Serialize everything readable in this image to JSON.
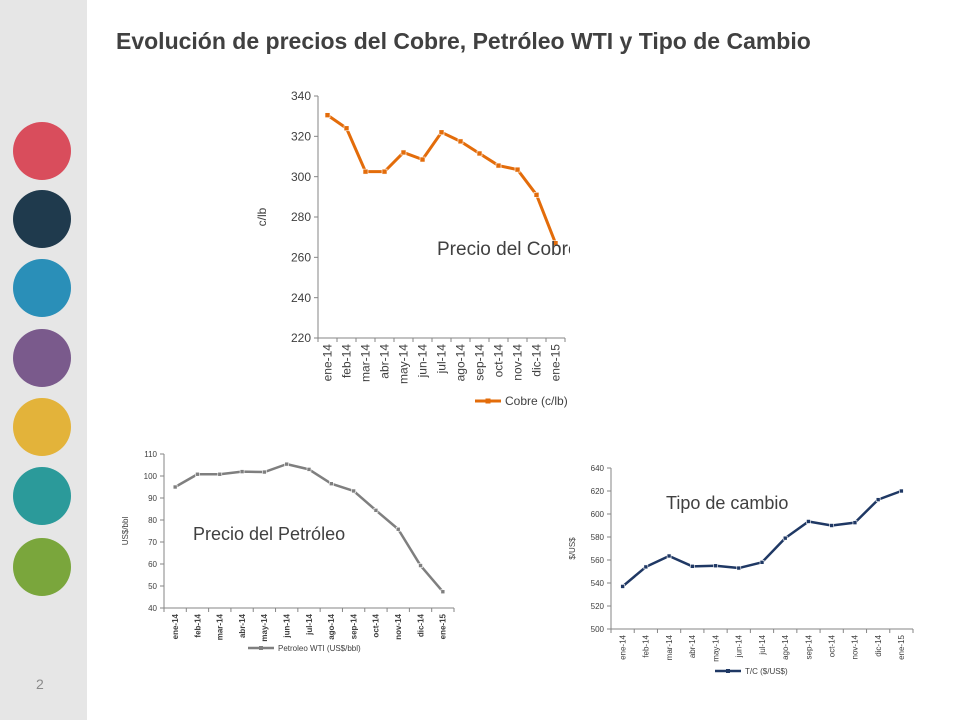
{
  "page": {
    "title": "Evolución de precios del Cobre, Petróleo WTI y Tipo de Cambio",
    "page_number": "2"
  },
  "sidebar": {
    "icons": [
      {
        "name": "hand-heart-icon",
        "color": "#d94d5c"
      },
      {
        "name": "handshake-icon",
        "color": "#1f3a4d"
      },
      {
        "name": "hand-award-icon",
        "color": "#2a8fb8"
      },
      {
        "name": "hands-together-icon",
        "color": "#7a5a8c"
      },
      {
        "name": "ok-hand-icon",
        "color": "#e3b33a"
      },
      {
        "name": "hand-lightbulb-icon",
        "color": "#2b9a9a"
      },
      {
        "name": "hand-leaf-icon",
        "color": "#7aa63c"
      }
    ]
  },
  "chart_data": [
    {
      "type": "line",
      "annotation": "Precio del Cobre",
      "ylabel": "c/lb",
      "categories": [
        "ene-14",
        "feb-14",
        "mar-14",
        "abr-14",
        "may-14",
        "jun-14",
        "jul-14",
        "ago-14",
        "sep-14",
        "oct-14",
        "nov-14",
        "dic-14",
        "ene-15"
      ],
      "series": [
        {
          "name": "Cobre (c/lb)",
          "color": "#e36c0a",
          "values": [
            330.5,
            324,
            302.5,
            302.5,
            312,
            308.5,
            322,
            317.5,
            311.5,
            305.5,
            303.5,
            291,
            267
          ]
        }
      ],
      "ylim": [
        220,
        340
      ],
      "yticks": [
        220,
        240,
        260,
        280,
        300,
        320,
        340
      ],
      "grid": false,
      "legend": "bottom"
    },
    {
      "type": "line",
      "annotation": "Precio del Petróleo",
      "ylabel": "US$/bbl",
      "categories": [
        "ene-14",
        "feb-14",
        "mar-14",
        "abr-14",
        "may-14",
        "jun-14",
        "jul-14",
        "ago-14",
        "sep-14",
        "oct-14",
        "nov-14",
        "dic-14",
        "ene-15"
      ],
      "series": [
        {
          "name": "Petroleo WTI (US$/bbl)",
          "color": "#7f7f7f",
          "values": [
            95,
            100.8,
            100.8,
            102,
            101.8,
            105.4,
            103,
            96.5,
            93.2,
            84.4,
            75.8,
            59.3,
            47.4
          ]
        }
      ],
      "ylim": [
        40,
        110
      ],
      "yticks": [
        40,
        50,
        60,
        70,
        80,
        90,
        100,
        110
      ],
      "grid": false,
      "legend": "bottom"
    },
    {
      "type": "line",
      "annotation": "Tipo de cambio",
      "ylabel": "$/US$",
      "categories": [
        "ene-14",
        "feb-14",
        "mar-14",
        "abr-14",
        "may-14",
        "jun-14",
        "jul-14",
        "ago-14",
        "sep-14",
        "oct-14",
        "nov-14",
        "dic-14",
        "ene-15"
      ],
      "series": [
        {
          "name": "T/C ($/US$)",
          "color": "#1f3864",
          "values": [
            537,
            554,
            563.5,
            554.5,
            555,
            553,
            558,
            579,
            593.5,
            590,
            592.5,
            612.5,
            620
          ]
        }
      ],
      "ylim": [
        500,
        640
      ],
      "yticks": [
        500,
        520,
        540,
        560,
        580,
        600,
        620,
        640
      ],
      "grid": false,
      "legend": "bottom"
    }
  ]
}
